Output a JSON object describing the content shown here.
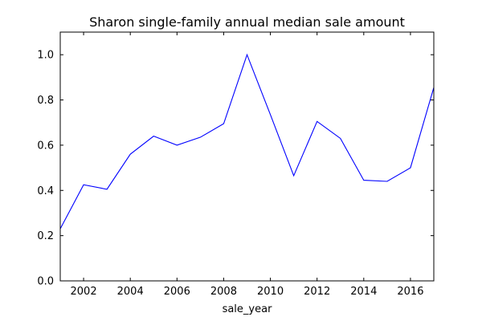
{
  "chart_data": {
    "type": "line",
    "title": "Sharon single-family annual median sale amount",
    "xlabel": "sale_year",
    "ylabel": "",
    "xlim": [
      2001,
      2017
    ],
    "ylim": [
      0.0,
      1.1
    ],
    "xticks": [
      2002,
      2004,
      2006,
      2008,
      2010,
      2012,
      2014,
      2016
    ],
    "yticks": [
      "0.0",
      "0.2",
      "0.4",
      "0.6",
      "0.8",
      "1.0"
    ],
    "grid": false,
    "line_color": "#0000ff",
    "series": [
      {
        "x": [
          2001,
          2002,
          2003,
          2004,
          2005,
          2006,
          2007,
          2008,
          2009,
          2010,
          2011,
          2012,
          2013,
          2014,
          2015,
          2016,
          2017
        ],
        "values": [
          0.23,
          0.425,
          0.405,
          0.56,
          0.64,
          0.6,
          0.635,
          0.695,
          1.0,
          0.735,
          0.465,
          0.705,
          0.63,
          0.445,
          0.44,
          0.5,
          0.855
        ]
      }
    ]
  }
}
